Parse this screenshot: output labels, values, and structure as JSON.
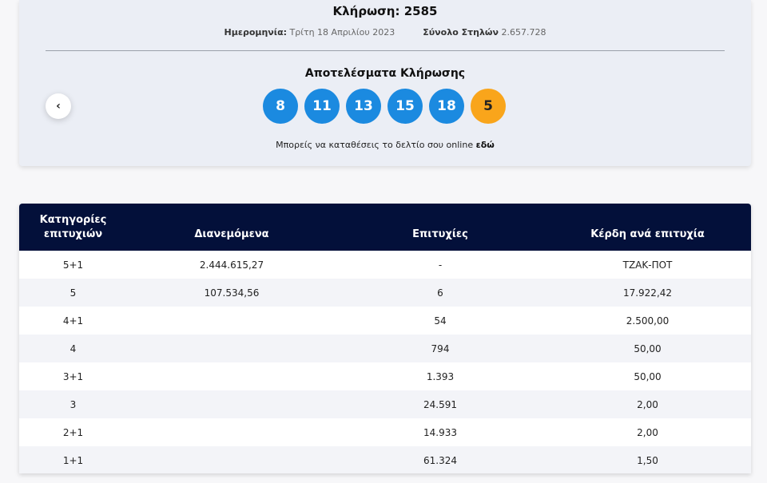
{
  "draw": {
    "title": "Κλήρωση: 2585",
    "date_label": "Ημερομηνία:",
    "date_value": "Τρίτη 18 Απριλίου 2023",
    "columns_label": "Σύνολο Στηλών",
    "columns_value": "2.657.728",
    "results_title": "Αποτελέσματα Κλήρωσης",
    "numbers": [
      "8",
      "11",
      "13",
      "15",
      "18"
    ],
    "bonus": "5",
    "online_text": "Μπορείς να καταθέσεις το δελτίο σου online ",
    "online_link": "εδώ",
    "prev_icon": "chevron-left-icon",
    "colors": {
      "ball": "#1b8ae0",
      "bonus_ball": "#f9a51b",
      "header": "#03103a"
    }
  },
  "table": {
    "headers": [
      "Κατηγορίες επιτυχιών",
      "Διανεμόμενα",
      "Επιτυχίες",
      "Κέρδη ανά επιτυχία"
    ],
    "rows": [
      [
        "5+1",
        "2.444.615,27",
        "-",
        "ΤΖΑΚ-ΠΟΤ"
      ],
      [
        "5",
        "107.534,56",
        "6",
        "17.922,42"
      ],
      [
        "4+1",
        "",
        "54",
        "2.500,00"
      ],
      [
        "4",
        "",
        "794",
        "50,00"
      ],
      [
        "3+1",
        "",
        "1.393",
        "50,00"
      ],
      [
        "3",
        "",
        "24.591",
        "2,00"
      ],
      [
        "2+1",
        "",
        "14.933",
        "2,00"
      ],
      [
        "1+1",
        "",
        "61.324",
        "1,50"
      ]
    ]
  }
}
